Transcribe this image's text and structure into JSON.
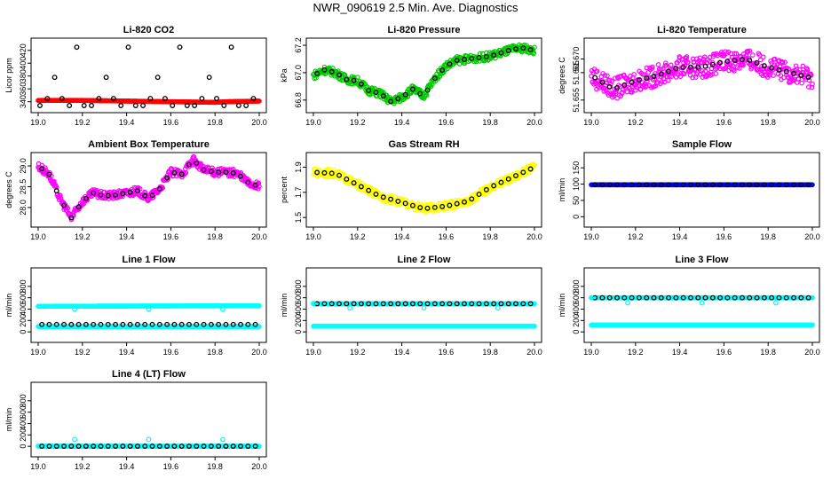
{
  "figure": {
    "title": "NWR_090619  2.5 Min. Ave. Diagnostics"
  },
  "chart_data": [
    {
      "type": "scatter",
      "title": "Li-820 CO2",
      "ylabel": "Licor ppm",
      "xlim": [
        19.0,
        20.0
      ],
      "ylim": [
        334,
        428
      ],
      "xticks": [
        19.0,
        19.2,
        19.4,
        19.6,
        19.8,
        20.0
      ],
      "xtick_labels": [
        "19.0",
        "19.2",
        "19.4",
        "19.6",
        "19.8",
        "20.0"
      ],
      "yticks": [
        340,
        360,
        380,
        400,
        420
      ],
      "ytick_labels": [
        "340",
        "360",
        "380",
        "400",
        "420"
      ],
      "series": [
        {
          "name": "continuous",
          "color": "#ff0000",
          "kind": "band",
          "x": [
            19.0,
            19.2,
            19.4,
            19.6,
            19.8,
            19.85,
            20.0
          ],
          "y": [
            342,
            342,
            341,
            340,
            339,
            340,
            341
          ]
        },
        {
          "name": "averages",
          "color": "#000000",
          "kind": "pattern",
          "x0": 19.008,
          "dx": 0.0333,
          "n": 30,
          "pattern": [
            334,
            345,
            378,
            345,
            334,
            425,
            334
          ]
        }
      ]
    },
    {
      "type": "scatter",
      "title": "Li-820 Pressure",
      "ylabel": "kPa",
      "xlim": [
        19.0,
        20.0
      ],
      "ylim": [
        66.76,
        67.2
      ],
      "xticks": [
        19.0,
        19.2,
        19.4,
        19.6,
        19.8,
        20.0
      ],
      "xtick_labels": [
        "19.0",
        "19.2",
        "19.4",
        "19.6",
        "19.8",
        "20.0"
      ],
      "yticks": [
        66.8,
        67.0,
        67.2
      ],
      "ytick_labels": [
        "66.8",
        "67.0",
        "67.2"
      ],
      "series": [
        {
          "name": "continuous",
          "color": "#00cc00",
          "kind": "band",
          "x": [
            19.0,
            19.05,
            19.1,
            19.15,
            19.2,
            19.25,
            19.3,
            19.35,
            19.4,
            19.45,
            19.5,
            19.55,
            19.6,
            19.65,
            19.7,
            19.8,
            19.9,
            19.95,
            20.0
          ],
          "y": [
            66.98,
            67.02,
            67.0,
            66.95,
            66.94,
            66.87,
            66.85,
            66.79,
            66.82,
            66.88,
            66.83,
            66.96,
            67.05,
            67.09,
            67.1,
            67.12,
            67.17,
            67.18,
            67.16
          ]
        },
        {
          "name": "averages",
          "color": "#000000",
          "kind": "curve-samples",
          "x": [
            19.0,
            19.05,
            19.1,
            19.15,
            19.2,
            19.25,
            19.3,
            19.35,
            19.4,
            19.45,
            19.5,
            19.55,
            19.6,
            19.65,
            19.7,
            19.8,
            19.9,
            19.95,
            20.0
          ],
          "y": [
            66.98,
            67.02,
            67.0,
            66.95,
            66.94,
            66.87,
            66.85,
            66.79,
            66.82,
            66.88,
            66.83,
            66.96,
            67.05,
            67.09,
            67.1,
            67.12,
            67.17,
            67.18,
            67.16
          ],
          "dx": 0.0333
        }
      ]
    },
    {
      "type": "scatter",
      "title": "Li-820 Temperature",
      "ylabel": "degrees C",
      "xlim": [
        19.0,
        20.0
      ],
      "ylim": [
        51.653,
        51.675
      ],
      "xticks": [
        19.0,
        19.2,
        19.4,
        19.6,
        19.8,
        20.0
      ],
      "xtick_labels": [
        "19.0",
        "19.2",
        "19.4",
        "19.6",
        "19.8",
        "20.0"
      ],
      "yticks": [
        51.655,
        51.665,
        51.67
      ],
      "ytick_labels": [
        "51.655",
        "51.665",
        "51.670"
      ],
      "series": [
        {
          "name": "continuous",
          "color": "#ff00ff",
          "kind": "band",
          "x": [
            19.0,
            19.1,
            19.2,
            19.3,
            19.4,
            19.5,
            19.6,
            19.7,
            19.8,
            19.9,
            20.0
          ],
          "y": [
            51.664,
            51.659,
            51.662,
            51.664,
            51.667,
            51.667,
            51.669,
            51.67,
            51.667,
            51.665,
            51.663
          ]
        },
        {
          "name": "averages",
          "color": "#000000",
          "kind": "curve-samples",
          "x": [
            19.0,
            19.1,
            19.2,
            19.3,
            19.4,
            19.5,
            19.6,
            19.7,
            19.8,
            19.9,
            20.0
          ],
          "y": [
            51.664,
            51.659,
            51.662,
            51.664,
            51.667,
            51.667,
            51.669,
            51.67,
            51.667,
            51.665,
            51.663
          ],
          "dx": 0.0333
        }
      ]
    },
    {
      "type": "scatter",
      "title": "Ambient Box Temperature",
      "ylabel": "degrees C",
      "xlim": [
        19.0,
        20.0
      ],
      "ylim": [
        27.7,
        29.15
      ],
      "xticks": [
        19.0,
        19.2,
        19.4,
        19.6,
        19.8,
        20.0
      ],
      "xtick_labels": [
        "19.0",
        "19.2",
        "19.4",
        "19.6",
        "19.8",
        "20.0"
      ],
      "yticks": [
        28.0,
        28.5,
        29.0
      ],
      "ytick_labels": [
        "28.0",
        "28.5",
        "29.0"
      ],
      "series": [
        {
          "name": "continuous",
          "color": "#ff00ff",
          "kind": "band",
          "x": [
            19.0,
            19.05,
            19.1,
            19.15,
            19.2,
            19.25,
            19.3,
            19.35,
            19.4,
            19.45,
            19.5,
            19.55,
            19.6,
            19.65,
            19.7,
            19.75,
            19.8,
            19.85,
            19.9,
            19.95,
            20.0
          ],
          "y": [
            29.0,
            28.8,
            28.2,
            27.75,
            28.15,
            28.35,
            28.28,
            28.3,
            28.35,
            28.4,
            28.22,
            28.45,
            28.85,
            28.8,
            29.15,
            28.9,
            28.85,
            28.85,
            28.82,
            28.6,
            28.5
          ]
        },
        {
          "name": "averages",
          "color": "#000000",
          "kind": "curve-samples",
          "x": [
            19.0,
            19.05,
            19.1,
            19.15,
            19.2,
            19.25,
            19.3,
            19.35,
            19.4,
            19.45,
            19.5,
            19.55,
            19.6,
            19.65,
            19.7,
            19.75,
            19.8,
            19.85,
            19.9,
            19.95,
            20.0
          ],
          "y": [
            29.0,
            28.8,
            28.2,
            27.75,
            28.15,
            28.35,
            28.28,
            28.3,
            28.35,
            28.4,
            28.22,
            28.45,
            28.85,
            28.8,
            29.15,
            28.9,
            28.85,
            28.85,
            28.82,
            28.6,
            28.5
          ],
          "dx": 0.0333
        }
      ]
    },
    {
      "type": "scatter",
      "title": "Gas Stream RH",
      "ylabel": "percent",
      "xlim": [
        19.0,
        20.0
      ],
      "ylim": [
        1.48,
        1.96
      ],
      "xticks": [
        19.0,
        19.2,
        19.4,
        19.6,
        19.8,
        20.0
      ],
      "xtick_labels": [
        "19.0",
        "19.2",
        "19.4",
        "19.6",
        "19.8",
        "20.0"
      ],
      "yticks": [
        1.5,
        1.7,
        1.9
      ],
      "ytick_labels": [
        "1.5",
        "1.7",
        "1.9"
      ],
      "series": [
        {
          "name": "continuous",
          "color": "#ffff00",
          "kind": "band",
          "x": [
            19.0,
            19.1,
            19.2,
            19.3,
            19.4,
            19.5,
            19.6,
            19.7,
            19.8,
            19.9,
            20.0
          ],
          "y": [
            1.86,
            1.85,
            1.76,
            1.67,
            1.62,
            1.57,
            1.59,
            1.63,
            1.74,
            1.82,
            1.9
          ]
        },
        {
          "name": "averages",
          "color": "#000000",
          "kind": "curve-samples",
          "x": [
            19.0,
            19.1,
            19.2,
            19.3,
            19.4,
            19.5,
            19.6,
            19.7,
            19.8,
            19.9,
            20.0
          ],
          "y": [
            1.86,
            1.85,
            1.76,
            1.67,
            1.62,
            1.57,
            1.59,
            1.63,
            1.74,
            1.82,
            1.9
          ],
          "dx": 0.0333
        }
      ]
    },
    {
      "type": "scatter",
      "title": "Sample Flow",
      "ylabel": "ml/min",
      "xlim": [
        19.0,
        20.0
      ],
      "ylim": [
        -10,
        175
      ],
      "xticks": [
        19.0,
        19.2,
        19.4,
        19.6,
        19.8,
        20.0
      ],
      "xtick_labels": [
        "19.0",
        "19.2",
        "19.4",
        "19.6",
        "19.8",
        "20.0"
      ],
      "yticks": [
        0,
        50,
        100,
        150
      ],
      "ytick_labels": [
        "0",
        "50",
        "100",
        "150"
      ],
      "series": [
        {
          "name": "continuous",
          "color": "#0000ff",
          "kind": "band",
          "x": [
            19.0,
            20.0
          ],
          "y": [
            98,
            98
          ]
        },
        {
          "name": "averages",
          "color": "#000000",
          "kind": "curve-samples",
          "x": [
            19.0,
            20.0
          ],
          "y": [
            98,
            98
          ],
          "dx": 0.0333
        }
      ]
    },
    {
      "type": "scatter",
      "title": "Line 1 Flow",
      "ylabel": "ml/min",
      "xlim": [
        19.0,
        20.0
      ],
      "ylim": [
        -60,
        1000
      ],
      "xticks": [
        19.0,
        19.2,
        19.4,
        19.6,
        19.8,
        20.0
      ],
      "xtick_labels": [
        "19.0",
        "19.2",
        "19.4",
        "19.6",
        "19.8",
        "20.0"
      ],
      "yticks": [
        0,
        200,
        400,
        600,
        800
      ],
      "ytick_labels": [
        "0",
        "200",
        "400",
        "600",
        "800"
      ],
      "series": [
        {
          "name": "continuous",
          "color": "#00ffff",
          "kind": "band",
          "x": [
            19.0,
            20.0
          ],
          "y": [
            450,
            460
          ]
        },
        {
          "name": "cyan-lower",
          "color": "#00ffff",
          "kind": "band",
          "x": [
            19.0,
            20.0
          ],
          "y": [
            95,
            95
          ]
        },
        {
          "name": "averages",
          "color": "#000000",
          "kind": "curve-samples",
          "x": [
            19.0,
            20.0
          ],
          "y": [
            130,
            130
          ],
          "dx": 0.0333
        },
        {
          "name": "cyan-dips",
          "color": "#00ffff",
          "kind": "points",
          "x": [
            19.165,
            19.5,
            19.835
          ],
          "y": [
            400,
            400,
            400
          ]
        }
      ]
    },
    {
      "type": "scatter",
      "title": "Line 2 Flow",
      "ylabel": "ml/min",
      "xlim": [
        19.0,
        20.0
      ],
      "ylim": [
        -60,
        1000
      ],
      "xticks": [
        19.0,
        19.2,
        19.4,
        19.6,
        19.8,
        20.0
      ],
      "xtick_labels": [
        "19.0",
        "19.2",
        "19.4",
        "19.6",
        "19.8",
        "20.0"
      ],
      "yticks": [
        0,
        200,
        400,
        600,
        800
      ],
      "ytick_labels": [
        "0",
        "200",
        "400",
        "600",
        "800"
      ],
      "series": [
        {
          "name": "continuous",
          "color": "#00ffff",
          "kind": "band",
          "x": [
            19.0,
            20.0
          ],
          "y": [
            495,
            495
          ]
        },
        {
          "name": "cyan-lower",
          "color": "#00ffff",
          "kind": "band",
          "x": [
            19.0,
            20.0
          ],
          "y": [
            100,
            100
          ]
        },
        {
          "name": "averages",
          "color": "#000000",
          "kind": "curve-samples",
          "x": [
            19.0,
            20.0
          ],
          "y": [
            495,
            495
          ],
          "dx": 0.0333
        },
        {
          "name": "cyan-dips",
          "color": "#00ffff",
          "kind": "points",
          "x": [
            19.0,
            19.165,
            19.5,
            19.835
          ],
          "y": [
            500,
            420,
            420,
            420
          ]
        }
      ]
    },
    {
      "type": "scatter",
      "title": "Line 3 Flow",
      "ylabel": "ml/min",
      "xlim": [
        19.0,
        20.0
      ],
      "ylim": [
        -60,
        1000
      ],
      "xticks": [
        19.0,
        19.2,
        19.4,
        19.6,
        19.8,
        20.0
      ],
      "xtick_labels": [
        "19.0",
        "19.2",
        "19.4",
        "19.6",
        "19.8",
        "20.0"
      ],
      "yticks": [
        0,
        200,
        400,
        600,
        800
      ],
      "ytick_labels": [
        "0",
        "200",
        "400",
        "600",
        "800"
      ],
      "series": [
        {
          "name": "continuous",
          "color": "#00ffff",
          "kind": "band",
          "x": [
            19.0,
            20.0
          ],
          "y": [
            600,
            600
          ]
        },
        {
          "name": "cyan-lower",
          "color": "#00ffff",
          "kind": "band",
          "x": [
            19.0,
            20.0
          ],
          "y": [
            120,
            120
          ]
        },
        {
          "name": "averages",
          "color": "#000000",
          "kind": "curve-samples",
          "x": [
            19.0,
            20.0
          ],
          "y": [
            600,
            600
          ],
          "dx": 0.0333
        },
        {
          "name": "cyan-dips",
          "color": "#00ffff",
          "kind": "points",
          "x": [
            19.0,
            19.165,
            19.5,
            19.835
          ],
          "y": [
            600,
            510,
            510,
            510
          ]
        }
      ]
    },
    {
      "type": "scatter",
      "title": "Line 4 (LT) Flow",
      "ylabel": "ml/min",
      "xlim": [
        19.0,
        20.0
      ],
      "ylim": [
        -60,
        1000
      ],
      "xticks": [
        19.0,
        19.2,
        19.4,
        19.6,
        19.8,
        20.0
      ],
      "xtick_labels": [
        "19.0",
        "19.2",
        "19.4",
        "19.6",
        "19.8",
        "20.0"
      ],
      "yticks": [
        0,
        200,
        400,
        600,
        800
      ],
      "ytick_labels": [
        "0",
        "200",
        "400",
        "600",
        "800"
      ],
      "series": [
        {
          "name": "continuous",
          "color": "#00ffff",
          "kind": "band",
          "x": [
            19.0,
            20.0
          ],
          "y": [
            2,
            2
          ]
        },
        {
          "name": "averages",
          "color": "#000000",
          "kind": "curve-samples",
          "x": [
            19.0,
            20.0
          ],
          "y": [
            2,
            2
          ],
          "dx": 0.0333
        },
        {
          "name": "cyan-spikes",
          "color": "#00ffff",
          "kind": "points",
          "x": [
            19.165,
            19.5,
            19.835
          ],
          "y": [
            120,
            120,
            120
          ]
        }
      ]
    }
  ]
}
